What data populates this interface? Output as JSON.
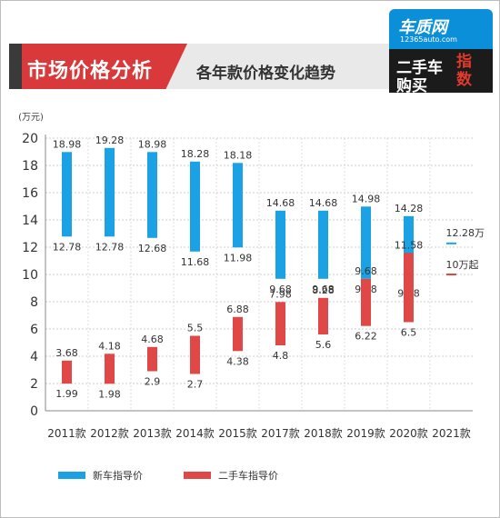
{
  "header": {
    "title": "市场价格分析",
    "subtitle": "各年款价格变化趋势"
  },
  "logo": {
    "brand": "车质网",
    "url": "12365auto.com",
    "line1": "二手车",
    "line2": "购买",
    "line3": "指数"
  },
  "colors": {
    "new": "#1aa2e4",
    "used": "#e04848",
    "title_red": "#d9393a",
    "axis": "#888888"
  },
  "chart_data": {
    "type": "bar",
    "subtype": "floating-range",
    "ylabel": "(万元)",
    "ylim": [
      0,
      20
    ],
    "yticks": [
      0,
      2,
      4,
      6,
      8,
      10,
      12,
      14,
      16,
      18,
      20
    ],
    "grid": true,
    "legend_position": "bottom-left",
    "categories": [
      "2011款",
      "2012款",
      "2013款",
      "2014款",
      "2015款",
      "2017款",
      "2018款",
      "2019款",
      "2020款",
      "2021款"
    ],
    "series": [
      {
        "name": "新车指导价",
        "color": "#1aa2e4",
        "high": [
          18.98,
          19.28,
          18.98,
          18.28,
          18.18,
          14.68,
          14.68,
          14.98,
          14.28,
          12.28
        ],
        "low": [
          12.78,
          12.78,
          12.68,
          11.68,
          11.98,
          9.68,
          9.68,
          9.68,
          9.38,
          12.28
        ],
        "high_labels": [
          "18.98",
          "19.28",
          "18.98",
          "18.28",
          "18.18",
          "14.68",
          "14.68",
          "14.98",
          "14.28",
          "12.28万"
        ],
        "low_labels": [
          "12.78",
          "12.78",
          "12.68",
          "11.68",
          "11.98",
          "9.68",
          "9.68",
          "9.68",
          "9.38",
          ""
        ]
      },
      {
        "name": "二手车指导价",
        "color": "#e04848",
        "high": [
          3.68,
          4.18,
          4.68,
          5.5,
          6.88,
          7.98,
          8.28,
          9.68,
          11.58,
          10
        ],
        "low": [
          1.99,
          1.98,
          2.9,
          2.7,
          4.38,
          4.8,
          5.6,
          6.22,
          6.5,
          10
        ],
        "high_labels": [
          "3.68",
          "4.18",
          "4.68",
          "5.5",
          "6.88",
          "7.98",
          "8.28",
          "9.68",
          "11.58",
          "10万起"
        ],
        "low_labels": [
          "1.99",
          "1.98",
          "2.9",
          "2.7",
          "4.38",
          "4.8",
          "5.6",
          "6.22",
          "6.5",
          ""
        ]
      }
    ]
  }
}
